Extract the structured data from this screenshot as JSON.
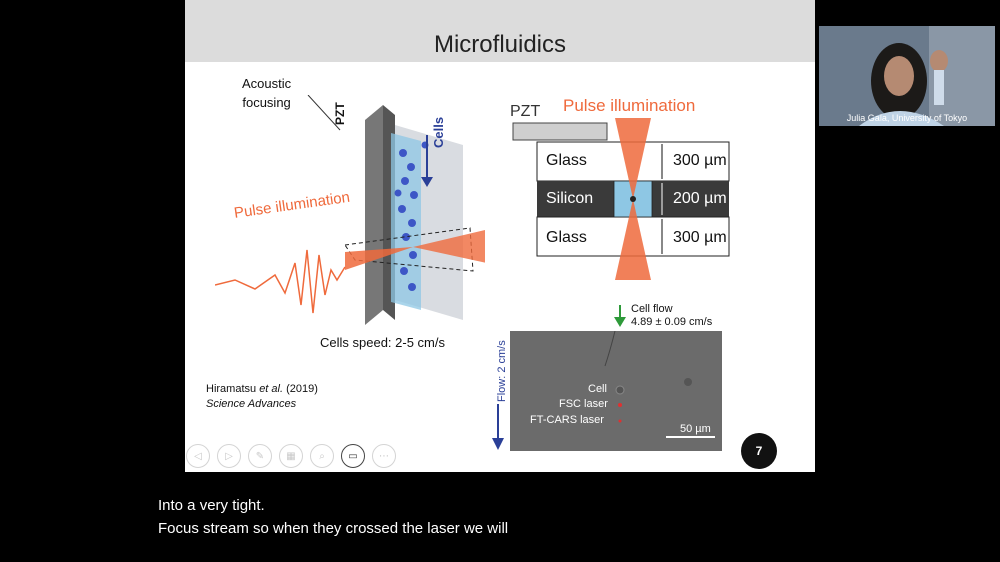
{
  "slide": {
    "title": "Microfluidics",
    "left_diagram": {
      "acoustic_focusing": "Acoustic\nfocusing",
      "pzt": "PZT",
      "cells": "Cells",
      "pulse_illumination": "Pulse illumination",
      "cells_speed": "Cells speed: 2-5 cm/s"
    },
    "right_diagram": {
      "pzt": "PZT",
      "pulse_illumination": "Pulse illumination",
      "layers": [
        {
          "name": "Glass",
          "thickness": "300 µm"
        },
        {
          "name": "Silicon",
          "thickness": "200 µm"
        },
        {
          "name": "Glass",
          "thickness": "300 µm"
        }
      ]
    },
    "micrograph": {
      "cell_flow_label": "Cell flow",
      "cell_flow_value": "4.89 ± 0.09 cm/s",
      "flow_label": "Flow: 2 cm/s",
      "cell": "Cell",
      "fsc_laser": "FSC laser",
      "ftcars_laser": "FT-CARS laser",
      "scale_bar": "50 µm"
    },
    "reference": {
      "authors": "Hiramatsu ",
      "etal": "et al.",
      "year": " (2019)",
      "journal": "Science Advances"
    },
    "page_number": "7"
  },
  "video": {
    "speaker_name": "Julia Gala, University of Tokyo"
  },
  "captions": {
    "line1": "Into a very tight.",
    "line2": "Focus stream so when they crossed the laser we will"
  },
  "toolbar": [
    "previous-icon",
    "next-icon",
    "pen-icon",
    "slides-icon",
    "zoom-icon",
    "subtitles-icon",
    "more-icon"
  ],
  "colors": {
    "accent_orange": "#ef6a3c",
    "cells_blue": "#2a3f97",
    "flow_green": "#2e9a3a"
  }
}
